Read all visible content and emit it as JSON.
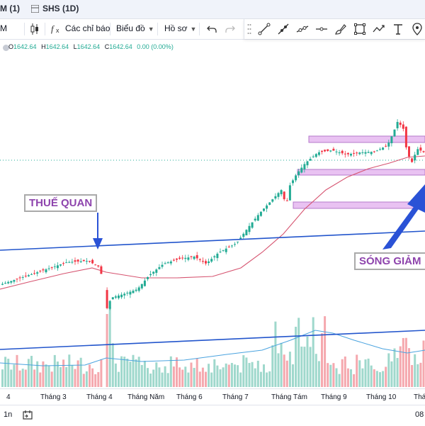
{
  "tabs": [
    {
      "label": "M (1)"
    },
    {
      "label": "SHS (1D)"
    }
  ],
  "toolbar": {
    "interval_label": "M",
    "indicators_label": "Các chỉ báo",
    "chart_type_label": "Biểu đồ",
    "profile_label": "Hồ sơ"
  },
  "drawing_tools": [
    "trend-line-icon",
    "ray-icon",
    "extended-line-icon",
    "horizontal-line-icon",
    "brush-icon",
    "rectangle-icon",
    "path-icon",
    "text-icon",
    "pin-icon"
  ],
  "legend": {
    "open_label": "O",
    "open": "1642.64",
    "high_label": "H",
    "high": "1642.64",
    "low_label": "L",
    "low": "1642.64",
    "close_label": "C",
    "close": "1642.64",
    "change": "0.00 (0.00%)"
  },
  "annotations": {
    "tariff": "THUẾ QUAN",
    "wave": "SÓNG GIẢM"
  },
  "xaxis": {
    "labels": [
      "4",
      "Tháng 3",
      "Tháng 4",
      "Tháng Năm",
      "Tháng 6",
      "Tháng 7",
      "Tháng Tám",
      "Tháng 9",
      "Tháng 10",
      "Tháng"
    ],
    "right_label": "08"
  },
  "bottombar": {
    "interval": "1n"
  },
  "colors": {
    "up": "#22ab94",
    "down": "#f23645",
    "ma": "#d65470",
    "trendline": "#2255cc",
    "zone": "#e6b3f0",
    "annotation_text": "#8e44ad",
    "arrow": "#2a52d6"
  }
}
